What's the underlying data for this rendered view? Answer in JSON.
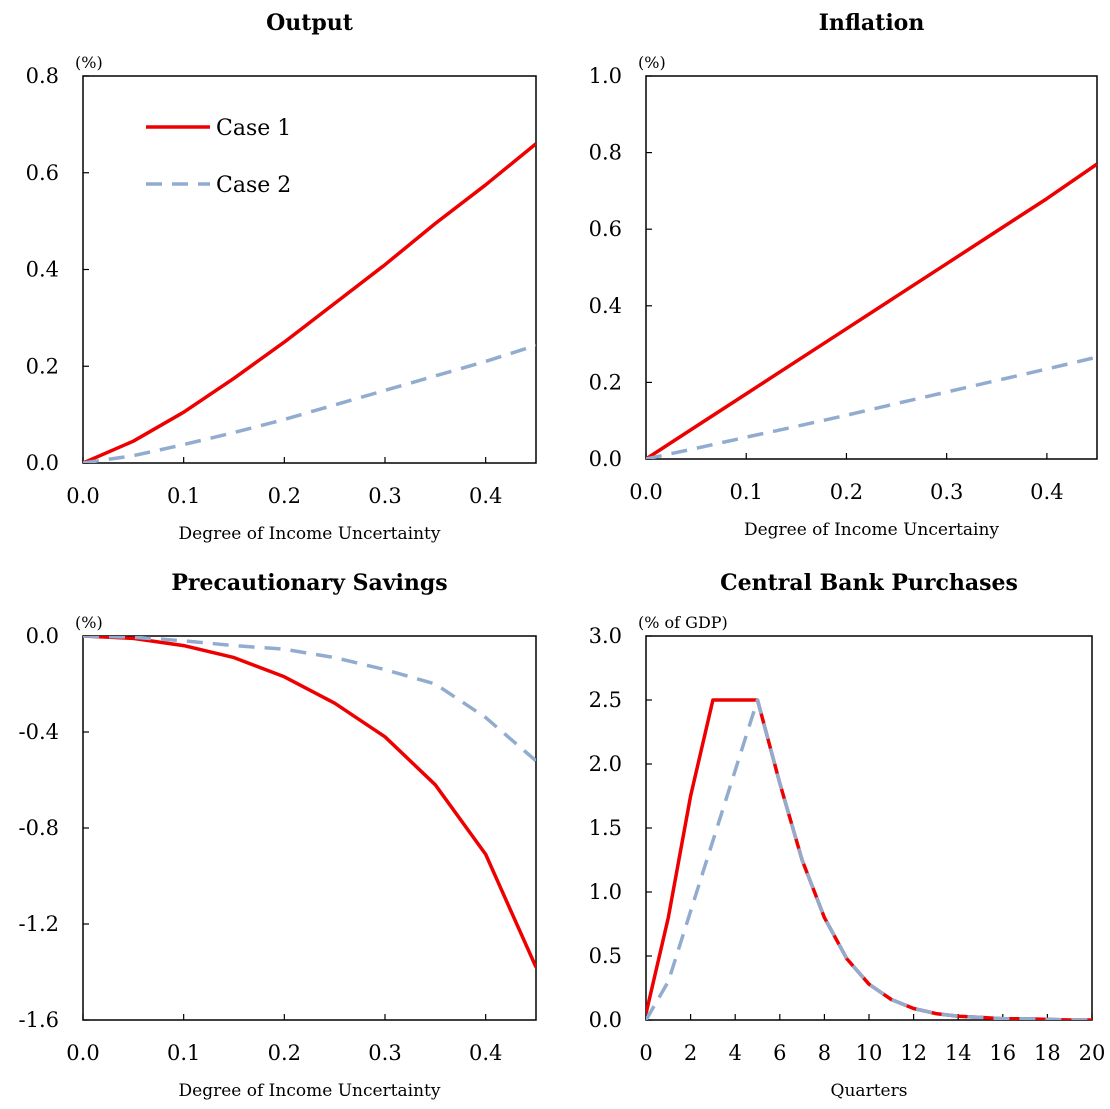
{
  "colors": {
    "case1": "#ee0000",
    "case2": "#92acd0",
    "frame": "#000000"
  },
  "chart_data": [
    {
      "id": "output",
      "type": "line",
      "title": "Output",
      "unit_label": "(%)",
      "xlabel": "Degree of Income Uncertainty",
      "xlim": [
        0,
        0.45
      ],
      "ylim": [
        0,
        0.8
      ],
      "xticks": [
        0,
        0.1,
        0.2,
        0.3,
        0.4
      ],
      "xtick_labels": [
        "0.0",
        "0.1",
        "0.2",
        "0.3",
        "0.4"
      ],
      "yticks": [
        0,
        0.2,
        0.4,
        0.6,
        0.8
      ],
      "ytick_labels": [
        "0.0",
        "0.2",
        "0.4",
        "0.6",
        "0.8"
      ],
      "grid": false,
      "legend": {
        "position": "top-left",
        "entries": [
          "Case 1",
          "Case 2"
        ]
      },
      "x": [
        0,
        0.05,
        0.1,
        0.15,
        0.2,
        0.25,
        0.3,
        0.35,
        0.4,
        0.45
      ],
      "series": [
        {
          "name": "Case 1",
          "values": [
            0,
            0.045,
            0.105,
            0.175,
            0.25,
            0.33,
            0.41,
            0.495,
            0.575,
            0.66
          ],
          "style": "solid"
        },
        {
          "name": "Case 2",
          "values": [
            0,
            0.015,
            0.038,
            0.063,
            0.09,
            0.12,
            0.15,
            0.18,
            0.21,
            0.243
          ],
          "style": "dashed"
        }
      ]
    },
    {
      "id": "inflation",
      "type": "line",
      "title": "Inflation",
      "unit_label": "(%)",
      "xlabel": "Degree of Income Uncertainy",
      "xlim": [
        0,
        0.45
      ],
      "ylim": [
        0,
        1.0
      ],
      "xticks": [
        0,
        0.1,
        0.2,
        0.3,
        0.4
      ],
      "xtick_labels": [
        "0.0",
        "0.1",
        "0.2",
        "0.3",
        "0.4"
      ],
      "yticks": [
        0,
        0.2,
        0.4,
        0.6,
        0.8,
        1.0
      ],
      "ytick_labels": [
        "0.0",
        "0.2",
        "0.4",
        "0.6",
        "0.8",
        "1.0"
      ],
      "grid": false,
      "x": [
        0,
        0.05,
        0.1,
        0.15,
        0.2,
        0.25,
        0.3,
        0.35,
        0.4,
        0.45
      ],
      "series": [
        {
          "name": "Case 1",
          "values": [
            0,
            0.085,
            0.17,
            0.255,
            0.34,
            0.425,
            0.51,
            0.595,
            0.68,
            0.77
          ],
          "style": "solid"
        },
        {
          "name": "Case 2",
          "values": [
            0,
            0.028,
            0.057,
            0.085,
            0.114,
            0.145,
            0.175,
            0.205,
            0.235,
            0.266
          ],
          "style": "dashed"
        }
      ]
    },
    {
      "id": "precautionary",
      "type": "line",
      "title": "Precautionary Savings",
      "unit_label": "(%)",
      "xlabel": "Degree of Income Uncertainty",
      "xlim": [
        0,
        0.45
      ],
      "ylim": [
        -1.6,
        0
      ],
      "xticks": [
        0,
        0.1,
        0.2,
        0.3,
        0.4
      ],
      "xtick_labels": [
        "0.0",
        "0.1",
        "0.2",
        "0.3",
        "0.4"
      ],
      "yticks": [
        0,
        -0.4,
        -0.8,
        -1.2,
        -1.6
      ],
      "ytick_labels": [
        "0.0",
        "-0.4",
        "-0.8",
        "-1.2",
        "-1.6"
      ],
      "grid": false,
      "x": [
        0,
        0.05,
        0.1,
        0.15,
        0.2,
        0.25,
        0.3,
        0.35,
        0.4,
        0.45
      ],
      "series": [
        {
          "name": "Case 1",
          "values": [
            0,
            -0.01,
            -0.04,
            -0.09,
            -0.17,
            -0.28,
            -0.42,
            -0.62,
            -0.91,
            -1.38
          ],
          "style": "solid"
        },
        {
          "name": "Case 2",
          "values": [
            0,
            -0.005,
            -0.02,
            -0.04,
            -0.055,
            -0.09,
            -0.14,
            -0.2,
            -0.34,
            -0.52
          ],
          "style": "dashed"
        }
      ]
    },
    {
      "id": "purchases",
      "type": "line",
      "title": "Central Bank  Purchases",
      "unit_label": "(% of GDP)",
      "xlabel": "Quarters",
      "xlim": [
        0,
        20
      ],
      "ylim": [
        0,
        3.0
      ],
      "xticks": [
        0,
        2,
        4,
        6,
        8,
        10,
        12,
        14,
        16,
        18,
        20
      ],
      "xtick_labels": [
        "0",
        "2",
        "4",
        "6",
        "8",
        "10",
        "12",
        "14",
        "16",
        "18",
        "20"
      ],
      "yticks": [
        0,
        0.5,
        1.0,
        1.5,
        2.0,
        2.5,
        3.0
      ],
      "ytick_labels": [
        "0.0",
        "0.5",
        "1.0",
        "1.5",
        "2.0",
        "2.5",
        "3.0"
      ],
      "grid": false,
      "x": [
        0,
        1,
        2,
        3,
        4,
        5,
        6,
        7,
        8,
        9,
        10,
        11,
        12,
        13,
        14,
        15,
        16,
        17,
        18,
        19,
        20
      ],
      "series": [
        {
          "name": "Case 1",
          "values": [
            0.05,
            0.8,
            1.75,
            2.5,
            2.5,
            2.5,
            1.85,
            1.25,
            0.8,
            0.48,
            0.28,
            0.16,
            0.09,
            0.05,
            0.03,
            0.02,
            0.01,
            0.01,
            0.005,
            0.0,
            0.0
          ],
          "style": "solid"
        },
        {
          "name": "Case 2",
          "values": [
            0.0,
            0.3,
            0.85,
            1.4,
            1.95,
            2.5,
            1.85,
            1.25,
            0.8,
            0.48,
            0.28,
            0.16,
            0.09,
            0.05,
            0.03,
            0.02,
            0.01,
            0.01,
            0.005,
            0.0,
            0.0
          ],
          "style": "dashed"
        }
      ]
    }
  ]
}
